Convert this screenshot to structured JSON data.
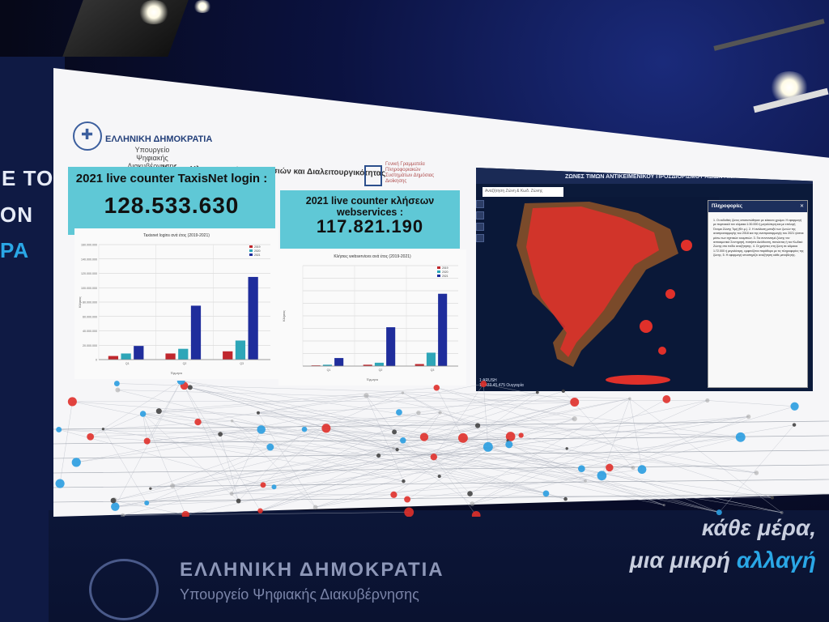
{
  "side_wall": {
    "line1": "Ε ΤΟ",
    "line2": "ΟΝ",
    "line3": "ΡΑ"
  },
  "floor": {
    "title": "ΕΛΛΗΝΙΚΗ ΔΗΜΟΚΡΑΤΙΑ",
    "subtitle": "Υπουργείο Ψηφιακής Διακυβέρνησης",
    "slogan_line1": "κάθε μέρα,",
    "slogan_line2_prefix": "μια μικρή",
    "slogan_line2_highlight": "αλλαγή"
  },
  "screen": {
    "logo_title": "ΕΛΛΗΝΙΚΗ ΔΗΜΟΚΡΑΤΙΑ",
    "logo_subtitle": "Υπουργείο Ψηφιακής Διακυβέρνησης",
    "heading": "Χρήση Ηλεκτρονικών Υπηρεσιών και Διαλειτουργικότητας",
    "gsis_text": "Γενική Γραμματεία Πληροφοριακών Συστημάτων Δημόσιας Διοίκησης",
    "counter_taxisnet": {
      "label": "2021 live counter TaxisNet login :",
      "value": "128.533.630"
    },
    "counter_webservices": {
      "label": "2021 live counter κλήσεων webservices :",
      "value": "117.821.190"
    }
  },
  "chart_data": [
    {
      "type": "bar",
      "title": "Taxisnet logins ανά έτος (2019-2021)",
      "xlabel": "Έρμηνο",
      "ylabel": "Κλήσεις",
      "categories": [
        "Q1",
        "Q2",
        "Q3"
      ],
      "yticks": [
        "160.000.000",
        "140.000.000",
        "120.000.000",
        "100.000.000",
        "80.000.000",
        "60.000.000",
        "40.000.000",
        "20.000.000",
        "0"
      ],
      "ylim": [
        0,
        160000000
      ],
      "series": [
        {
          "name": "2019",
          "values": [
            5000000,
            8500000,
            11500000
          ],
          "color": "#c0272d"
        },
        {
          "name": "2020",
          "values": [
            8500000,
            15000000,
            26500000
          ],
          "color": "#2ea6b8"
        },
        {
          "name": "2021",
          "values": [
            19000000,
            75000000,
            115000000
          ],
          "color": "#1f2d9c"
        }
      ],
      "legend": "top-right"
    },
    {
      "type": "bar",
      "title": "Κλήσεις webservices ανά έτος (2019-2021)",
      "xlabel": "Έρμηνο",
      "ylabel": "Κλήσεις",
      "categories": [
        "Q1",
        "Q2",
        "Q3"
      ],
      "ylim": [
        0,
        150000000
      ],
      "series": [
        {
          "name": "2019",
          "values": [
            1000000,
            2000000,
            3000000
          ],
          "color": "#c0272d"
        },
        {
          "name": "2020",
          "values": [
            2000000,
            5000000,
            20000000
          ],
          "color": "#2ea6b8"
        },
        {
          "name": "2021",
          "values": [
            12000000,
            58000000,
            108000000
          ],
          "color": "#1f2d9c"
        }
      ],
      "legend": "top-right"
    }
  ],
  "map": {
    "title": "ΖΩΝΕΣ ΤΙΜΩΝ ΑΝΤΙΚΕΙΜΕΝΙΚΟΥ ΠΡΟΣΔΙΟΡΙΣΜΟΥ ΑΞΙΩΝ ΑΚΙΝΗΤΩΝ",
    "search_placeholder": "Αναζήτηση Ζώνη & Κωδ. Ζώνης",
    "info_title": "Πληροφορίες",
    "info_close": "✕",
    "info_body": "1. Οι εκδοθείς ζώνες αποτυπώθηκαν με κόκκινο χρώμα. Η εφαρμογή με πορτοκαλί τον κλίμακα 1:30.000 ή μεγαλύτερη και με επιλογή Όνομα Ζώνης Τιμή (€/τ.μ.). 2. Η ανάλυση μεταξύ των ζωνών της αναπροσαρμογής του 2018 και της αναπροσαρμογής του 2021 γίνεται μέσω των σχετικών κουμπιών. 3. Για συντονισμό ζώνης τον αντικειμενικό Συντηρητή, πατήστε Διεύθυνση, πατώντας ή τον Κωδικό Ζώνης στο πεδίο αναζήτησης. 4. Οι χρήστες στη ζώνη σε κλίμακα 1:72.000 ή μεγαλύτερη, εμφανίζεται παράθυρο με τις πληροφορίες της ζώνης. 5. Η εφαρμογή υποστηρίζει αναζήτηση κάθε μεταβλητής.",
    "status": "17.433.45.475 Ουγγαρία",
    "scale": "1:ARUSH"
  }
}
